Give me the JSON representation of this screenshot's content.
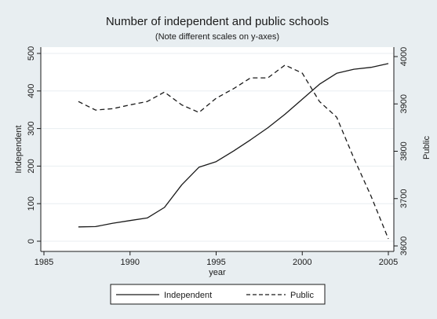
{
  "chart_data": {
    "type": "line",
    "title": "Number of independent and public schools",
    "subtitle": "(Note different scales on y-axes)",
    "xlabel": "year",
    "ylabel_left": "Independent",
    "ylabel_right": "Public",
    "x_ticks": [
      1985,
      1990,
      1995,
      2000,
      2005
    ],
    "y_left_ticks": [
      0,
      100,
      200,
      300,
      400,
      500
    ],
    "y_right_ticks": [
      3600,
      3700,
      3800,
      3900,
      4000
    ],
    "xlim": [
      1985,
      2005
    ],
    "ylim_left": [
      0,
      500
    ],
    "ylim_right": [
      3600,
      4000
    ],
    "grid": "horizontal",
    "legend_position": "bottom",
    "series": [
      {
        "name": "Independent",
        "axis": "left",
        "style": "solid",
        "x": [
          1987,
          1988,
          1989,
          1990,
          1991,
          1992,
          1993,
          1994,
          1995,
          1996,
          1997,
          1998,
          1999,
          2000,
          2001,
          2002,
          2003,
          2004,
          2005
        ],
        "y": [
          38,
          39,
          48,
          55,
          62,
          90,
          150,
          197,
          212,
          240,
          270,
          302,
          338,
          378,
          418,
          447,
          458,
          463,
          473
        ]
      },
      {
        "name": "Public",
        "axis": "right",
        "style": "dashed",
        "x": [
          1987,
          1988,
          1989,
          1990,
          1991,
          1992,
          1993,
          1994,
          1995,
          1996,
          1997,
          1998,
          1999,
          2000,
          2001,
          2002,
          2003,
          2004,
          2005
        ],
        "y": [
          3905,
          3887,
          3890,
          3898,
          3905,
          3925,
          3898,
          3882,
          3912,
          3932,
          3955,
          3955,
          3982,
          3965,
          3905,
          3872,
          3785,
          3705,
          3615
        ]
      }
    ]
  },
  "colors": {
    "background": "#e8eef1",
    "plot_area": "#ffffff",
    "grid": "#e8eef1",
    "line": "#1a1a1a",
    "legend_fill": "#ffffff"
  }
}
